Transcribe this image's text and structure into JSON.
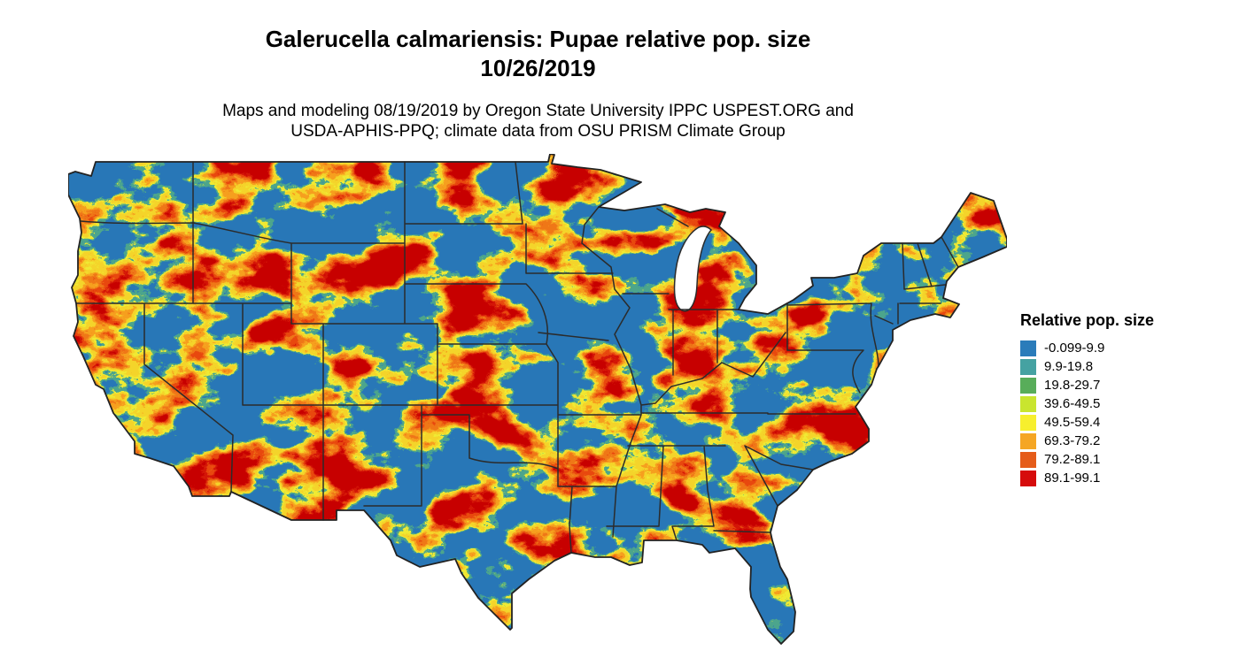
{
  "title": {
    "line1": "Galerucella calmariensis: Pupae relative pop. size",
    "line2": "10/26/2019"
  },
  "subtitle": {
    "line1": "Maps and modeling 08/19/2019 by Oregon State University IPPC USPEST.ORG and",
    "line2": "USDA-APHIS-PPQ; climate data from OSU PRISM Climate Group"
  },
  "legend": {
    "title": "Relative pop. size",
    "items": [
      {
        "label": "-0.099-9.9",
        "color": "#2b7cba"
      },
      {
        "label": "9.9-19.8",
        "color": "#45a2a2"
      },
      {
        "label": "19.8-29.7",
        "color": "#58ad5a"
      },
      {
        "label": "39.6-49.5",
        "color": "#c9e52f"
      },
      {
        "label": "49.5-59.4",
        "color": "#f7ef2e"
      },
      {
        "label": "69.3-79.2",
        "color": "#f5a624"
      },
      {
        "label": "79.2-89.1",
        "color": "#e55c1a"
      },
      {
        "label": "89.1-99.1",
        "color": "#d60c0c"
      }
    ]
  },
  "map": {
    "palette": {
      "low_blue": "#2878b8",
      "mid_yellow": "#f0ea33",
      "orange": "#f7a01f",
      "high_red": "#c80000",
      "boundary_line": "#2b2b2b",
      "water_background": "#ffffff"
    }
  }
}
